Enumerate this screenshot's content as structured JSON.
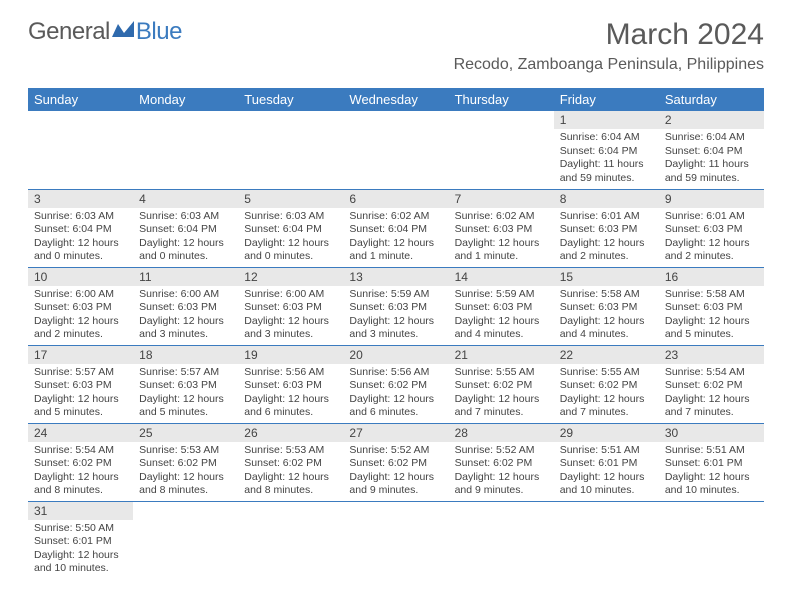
{
  "logo": {
    "text_general": "General",
    "text_blue": "Blue",
    "icon_color": "#2f6aad"
  },
  "header": {
    "month_title": "March 2024",
    "location": "Recodo, Zamboanga Peninsula, Philippines"
  },
  "colors": {
    "header_bg": "#3b7bbf",
    "header_text": "#ffffff",
    "daynum_bg": "#e8e8e8",
    "text": "#444444",
    "border": "#3b7bbf"
  },
  "day_headers": [
    "Sunday",
    "Monday",
    "Tuesday",
    "Wednesday",
    "Thursday",
    "Friday",
    "Saturday"
  ],
  "weeks": [
    [
      null,
      null,
      null,
      null,
      null,
      {
        "num": "1",
        "sunrise": "6:04 AM",
        "sunset": "6:04 PM",
        "daylight": "11 hours and 59 minutes."
      },
      {
        "num": "2",
        "sunrise": "6:04 AM",
        "sunset": "6:04 PM",
        "daylight": "11 hours and 59 minutes."
      }
    ],
    [
      {
        "num": "3",
        "sunrise": "6:03 AM",
        "sunset": "6:04 PM",
        "daylight": "12 hours and 0 minutes."
      },
      {
        "num": "4",
        "sunrise": "6:03 AM",
        "sunset": "6:04 PM",
        "daylight": "12 hours and 0 minutes."
      },
      {
        "num": "5",
        "sunrise": "6:03 AM",
        "sunset": "6:04 PM",
        "daylight": "12 hours and 0 minutes."
      },
      {
        "num": "6",
        "sunrise": "6:02 AM",
        "sunset": "6:04 PM",
        "daylight": "12 hours and 1 minute."
      },
      {
        "num": "7",
        "sunrise": "6:02 AM",
        "sunset": "6:03 PM",
        "daylight": "12 hours and 1 minute."
      },
      {
        "num": "8",
        "sunrise": "6:01 AM",
        "sunset": "6:03 PM",
        "daylight": "12 hours and 2 minutes."
      },
      {
        "num": "9",
        "sunrise": "6:01 AM",
        "sunset": "6:03 PM",
        "daylight": "12 hours and 2 minutes."
      }
    ],
    [
      {
        "num": "10",
        "sunrise": "6:00 AM",
        "sunset": "6:03 PM",
        "daylight": "12 hours and 2 minutes."
      },
      {
        "num": "11",
        "sunrise": "6:00 AM",
        "sunset": "6:03 PM",
        "daylight": "12 hours and 3 minutes."
      },
      {
        "num": "12",
        "sunrise": "6:00 AM",
        "sunset": "6:03 PM",
        "daylight": "12 hours and 3 minutes."
      },
      {
        "num": "13",
        "sunrise": "5:59 AM",
        "sunset": "6:03 PM",
        "daylight": "12 hours and 3 minutes."
      },
      {
        "num": "14",
        "sunrise": "5:59 AM",
        "sunset": "6:03 PM",
        "daylight": "12 hours and 4 minutes."
      },
      {
        "num": "15",
        "sunrise": "5:58 AM",
        "sunset": "6:03 PM",
        "daylight": "12 hours and 4 minutes."
      },
      {
        "num": "16",
        "sunrise": "5:58 AM",
        "sunset": "6:03 PM",
        "daylight": "12 hours and 5 minutes."
      }
    ],
    [
      {
        "num": "17",
        "sunrise": "5:57 AM",
        "sunset": "6:03 PM",
        "daylight": "12 hours and 5 minutes."
      },
      {
        "num": "18",
        "sunrise": "5:57 AM",
        "sunset": "6:03 PM",
        "daylight": "12 hours and 5 minutes."
      },
      {
        "num": "19",
        "sunrise": "5:56 AM",
        "sunset": "6:03 PM",
        "daylight": "12 hours and 6 minutes."
      },
      {
        "num": "20",
        "sunrise": "5:56 AM",
        "sunset": "6:02 PM",
        "daylight": "12 hours and 6 minutes."
      },
      {
        "num": "21",
        "sunrise": "5:55 AM",
        "sunset": "6:02 PM",
        "daylight": "12 hours and 7 minutes."
      },
      {
        "num": "22",
        "sunrise": "5:55 AM",
        "sunset": "6:02 PM",
        "daylight": "12 hours and 7 minutes."
      },
      {
        "num": "23",
        "sunrise": "5:54 AM",
        "sunset": "6:02 PM",
        "daylight": "12 hours and 7 minutes."
      }
    ],
    [
      {
        "num": "24",
        "sunrise": "5:54 AM",
        "sunset": "6:02 PM",
        "daylight": "12 hours and 8 minutes."
      },
      {
        "num": "25",
        "sunrise": "5:53 AM",
        "sunset": "6:02 PM",
        "daylight": "12 hours and 8 minutes."
      },
      {
        "num": "26",
        "sunrise": "5:53 AM",
        "sunset": "6:02 PM",
        "daylight": "12 hours and 8 minutes."
      },
      {
        "num": "27",
        "sunrise": "5:52 AM",
        "sunset": "6:02 PM",
        "daylight": "12 hours and 9 minutes."
      },
      {
        "num": "28",
        "sunrise": "5:52 AM",
        "sunset": "6:02 PM",
        "daylight": "12 hours and 9 minutes."
      },
      {
        "num": "29",
        "sunrise": "5:51 AM",
        "sunset": "6:01 PM",
        "daylight": "12 hours and 10 minutes."
      },
      {
        "num": "30",
        "sunrise": "5:51 AM",
        "sunset": "6:01 PM",
        "daylight": "12 hours and 10 minutes."
      }
    ],
    [
      {
        "num": "31",
        "sunrise": "5:50 AM",
        "sunset": "6:01 PM",
        "daylight": "12 hours and 10 minutes."
      },
      null,
      null,
      null,
      null,
      null,
      null
    ]
  ]
}
